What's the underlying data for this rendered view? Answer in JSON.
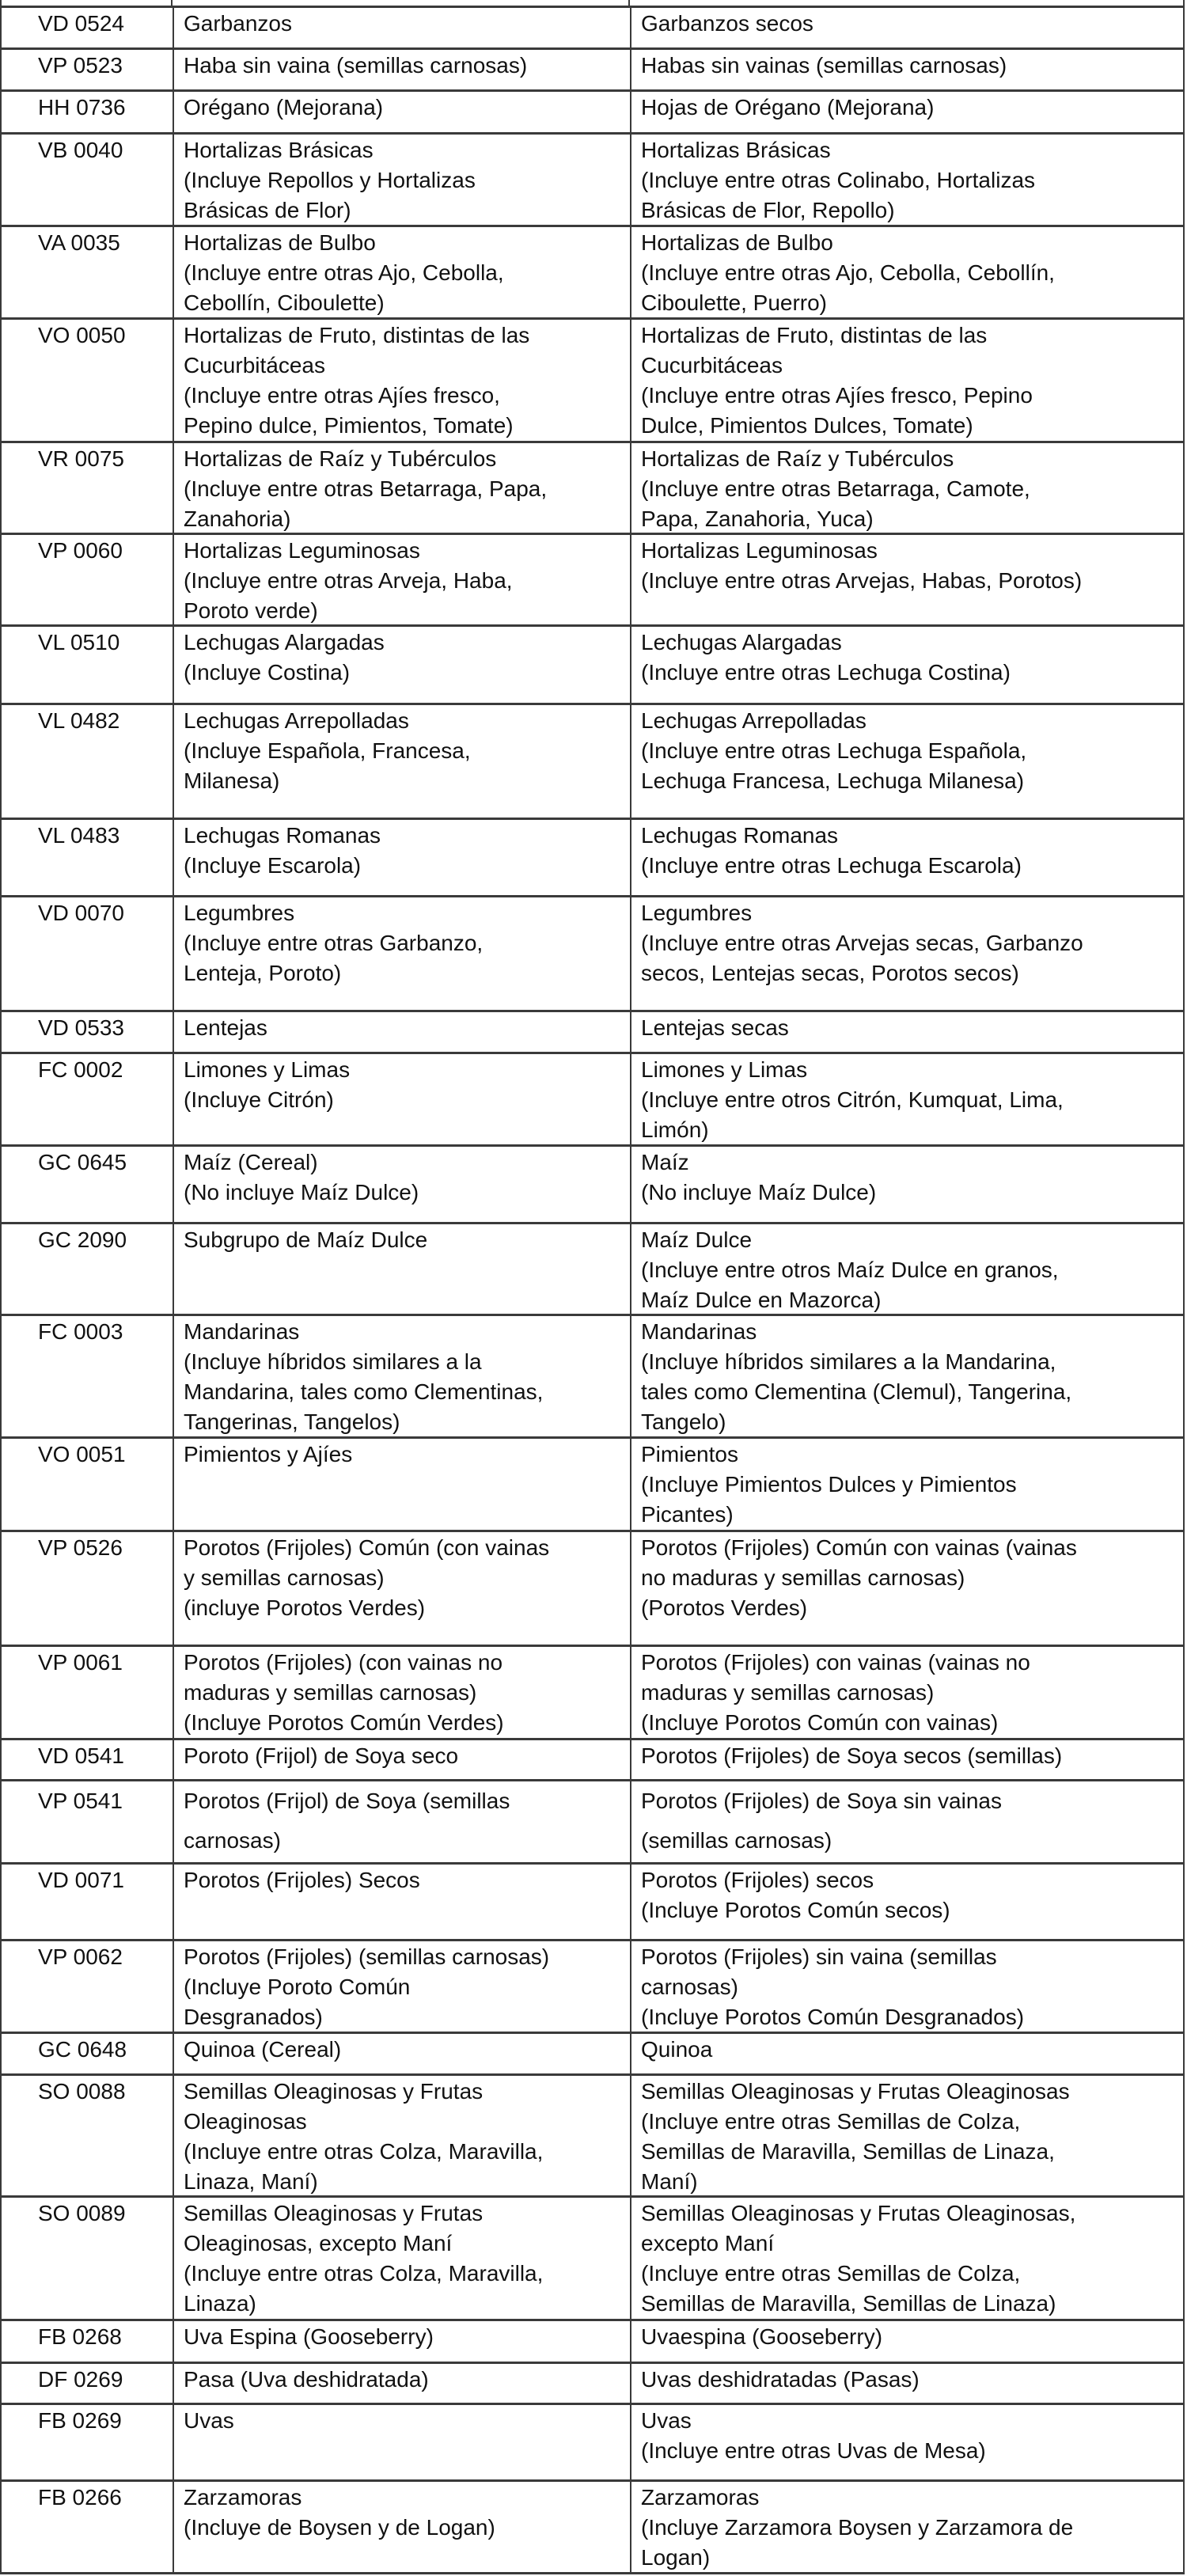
{
  "table": {
    "rows": [
      {
        "code": "VD 0524",
        "codex": [
          "Garbanzos"
        ],
        "local": [
          "Garbanzos secos"
        ]
      },
      {
        "code": "VP 0523",
        "codex": [
          "Haba sin vaina (semillas carnosas)"
        ],
        "local": [
          "Habas sin vainas (semillas carnosas)"
        ]
      },
      {
        "code": "HH 0736",
        "codex": [
          "Orégano (Mejorana)"
        ],
        "local": [
          "Hojas de Orégano (Mejorana)"
        ]
      },
      {
        "code": "VB 0040",
        "codex": [
          "Hortalizas Brásicas",
          "(Incluye Repollos y Hortalizas",
          "Brásicas de Flor)"
        ],
        "local": [
          "Hortalizas Brásicas",
          "(Incluye entre otras Colinabo, Hortalizas",
          "Brásicas de Flor, Repollo)"
        ]
      },
      {
        "code": "VA 0035",
        "codex": [
          "Hortalizas de Bulbo",
          "(Incluye entre otras Ajo, Cebolla,",
          "Cebollín, Ciboulette)"
        ],
        "local": [
          "Hortalizas de Bulbo",
          "(Incluye entre otras Ajo, Cebolla, Cebollín,",
          "Ciboulette, Puerro)"
        ]
      },
      {
        "code": "VO 0050",
        "codex": [
          "Hortalizas de Fruto, distintas de las",
          "Cucurbitáceas",
          "(Incluye entre otras Ajíes fresco,",
          "Pepino dulce, Pimientos, Tomate)"
        ],
        "local": [
          "Hortalizas de Fruto, distintas de las",
          "Cucurbitáceas",
          "(Incluye entre otras Ajíes fresco, Pepino",
          "Dulce, Pimientos Dulces, Tomate)"
        ]
      },
      {
        "code": "VR 0075",
        "codex": [
          "Hortalizas de Raíz y Tubérculos",
          "(Incluye entre otras Betarraga, Papa,",
          "Zanahoria)"
        ],
        "local": [
          "Hortalizas de Raíz y Tubérculos",
          "(Incluye entre otras Betarraga, Camote,",
          "Papa, Zanahoria, Yuca)"
        ]
      },
      {
        "code": "VP 0060",
        "codex": [
          "Hortalizas Leguminosas",
          "(Incluye entre otras Arveja, Haba,",
          "Poroto verde)"
        ],
        "local": [
          "Hortalizas Leguminosas",
          "(Incluye entre otras Arvejas, Habas, Porotos)"
        ]
      },
      {
        "code": "VL 0510",
        "codex": [
          "Lechugas Alargadas",
          "(Incluye Costina)"
        ],
        "local": [
          "Lechugas Alargadas",
          "(Incluye entre otras Lechuga Costina)"
        ]
      },
      {
        "code": "VL 0482",
        "codex": [
          "Lechugas Arrepolladas",
          "(Incluye Española, Francesa,",
          "Milanesa)"
        ],
        "local": [
          "Lechugas Arrepolladas",
          "(Incluye entre otras Lechuga Española,",
          "Lechuga Francesa, Lechuga Milanesa)"
        ]
      },
      {
        "code": "VL 0483",
        "codex": [
          "Lechugas Romanas",
          "(Incluye Escarola)"
        ],
        "local": [
          "Lechugas Romanas",
          "(Incluye entre otras Lechuga Escarola)"
        ]
      },
      {
        "code": "VD 0070",
        "codex": [
          "Legumbres",
          "(Incluye entre otras Garbanzo,",
          "Lenteja, Poroto)"
        ],
        "local": [
          "Legumbres",
          "(Incluye entre otras Arvejas secas, Garbanzo",
          "secos, Lentejas secas, Porotos secos)"
        ]
      },
      {
        "code": "VD 0533",
        "codex": [
          "Lentejas"
        ],
        "local": [
          "Lentejas secas"
        ]
      },
      {
        "code": "FC 0002",
        "codex": [
          "Limones y Limas",
          "(Incluye Citrón)"
        ],
        "local": [
          "Limones y Limas",
          "(Incluye entre otros Citrón, Kumquat, Lima,",
          "Limón)"
        ]
      },
      {
        "code": "GC 0645",
        "codex": [
          "Maíz (Cereal)",
          "(No incluye Maíz Dulce)"
        ],
        "local": [
          "Maíz",
          "(No incluye Maíz Dulce)"
        ]
      },
      {
        "code": "GC 2090",
        "codex": [
          "Subgrupo de Maíz Dulce"
        ],
        "local": [
          "Maíz Dulce",
          "(Incluye entre otros Maíz Dulce en granos,",
          "Maíz Dulce en Mazorca)"
        ]
      },
      {
        "code": "FC 0003",
        "codex": [
          "Mandarinas",
          "(Incluye híbridos similares a la",
          "Mandarina, tales como  Clementinas,",
          "Tangerinas, Tangelos)"
        ],
        "local": [
          "Mandarinas",
          "(Incluye híbridos similares a la Mandarina,",
          "tales como  Clementina (Clemul), Tangerina,",
          "Tangelo)"
        ]
      },
      {
        "code": "VO 0051",
        "codex": [
          "Pimientos y Ajíes"
        ],
        "local": [
          "Pimientos",
          "(Incluye Pimientos Dulces y Pimientos",
          "Picantes)"
        ]
      },
      {
        "code": "VP 0526",
        "codex": [
          "Porotos (Frijoles) Común (con vainas",
          "y semillas carnosas)",
          "(incluye Porotos Verdes)"
        ],
        "local": [
          "Porotos (Frijoles) Común con vainas (vainas",
          "no maduras y semillas carnosas)",
          "(Porotos Verdes)"
        ]
      },
      {
        "code": "VP 0061",
        "codex": [
          "Porotos (Frijoles) (con vainas no",
          "maduras y semillas carnosas)",
          "(Incluye Porotos Común Verdes)"
        ],
        "local": [
          "Porotos (Frijoles) con vainas (vainas no",
          "maduras y semillas carnosas)",
          "(Incluye Porotos Común con vainas)"
        ]
      },
      {
        "code": "VD 0541",
        "codex": [
          "Poroto (Frijol) de Soya seco"
        ],
        "local": [
          "Porotos (Frijoles) de Soya secos (semillas)"
        ]
      },
      {
        "code": "VP 0541",
        "codex": [
          "Porotos (Frijol) de Soya (semillas",
          "carnosas)"
        ],
        "local": [
          "Porotos (Frijoles) de Soya sin vainas",
          "(semillas carnosas)"
        ]
      },
      {
        "code": "VD 0071",
        "codex": [
          "Porotos (Frijoles) Secos"
        ],
        "local": [
          "Porotos (Frijoles) secos",
          "(Incluye Porotos Común secos)"
        ]
      },
      {
        "code": "VP 0062",
        "codex": [
          "Porotos (Frijoles) (semillas carnosas)",
          "(Incluye Poroto Común",
          "Desgranados)"
        ],
        "local": [
          "Porotos (Frijoles) sin vaina (semillas",
          "carnosas)",
          "(Incluye Porotos Común Desgranados)"
        ]
      },
      {
        "code": "GC 0648",
        "codex": [
          "Quinoa (Cereal)"
        ],
        "local": [
          "Quinoa"
        ]
      },
      {
        "code": "SO 0088",
        "codex": [
          "Semillas Oleaginosas y Frutas",
          "Oleaginosas",
          "(Incluye entre otras Colza, Maravilla,",
          "Linaza, Maní)"
        ],
        "local": [
          "Semillas Oleaginosas y Frutas Oleaginosas",
          "(Incluye entre otras Semillas de Colza,",
          "Semillas de Maravilla, Semillas de Linaza,",
          "Maní)"
        ]
      },
      {
        "code": "SO 0089",
        "codex": [
          "Semillas Oleaginosas y Frutas",
          "Oleaginosas, excepto Maní",
          "(Incluye entre otras Colza, Maravilla,",
          "Linaza)"
        ],
        "local": [
          "Semillas Oleaginosas y Frutas Oleaginosas,",
          "excepto Maní",
          "(Incluye entre otras Semillas de Colza,",
          "Semillas de Maravilla, Semillas de Linaza)"
        ]
      },
      {
        "code": "FB 0268",
        "codex": [
          "Uva Espina (Gooseberry)"
        ],
        "local": [
          "Uvaespina (Gooseberry)"
        ]
      },
      {
        "code": "DF 0269",
        "codex": [
          "Pasa (Uva deshidratada)"
        ],
        "local": [
          "Uvas deshidratadas (Pasas)"
        ]
      },
      {
        "code": "FB 0269",
        "codex": [
          "Uvas"
        ],
        "local": [
          "Uvas",
          "(Incluye entre otras Uvas de Mesa)"
        ]
      },
      {
        "code": "FB 0266",
        "codex": [
          "Zarzamoras",
          "(Incluye de Boysen y de Logan)"
        ],
        "local": [
          "Zarzamoras",
          "(Incluye Zarzamora Boysen y Zarzamora de",
          "Logan)"
        ]
      }
    ]
  }
}
